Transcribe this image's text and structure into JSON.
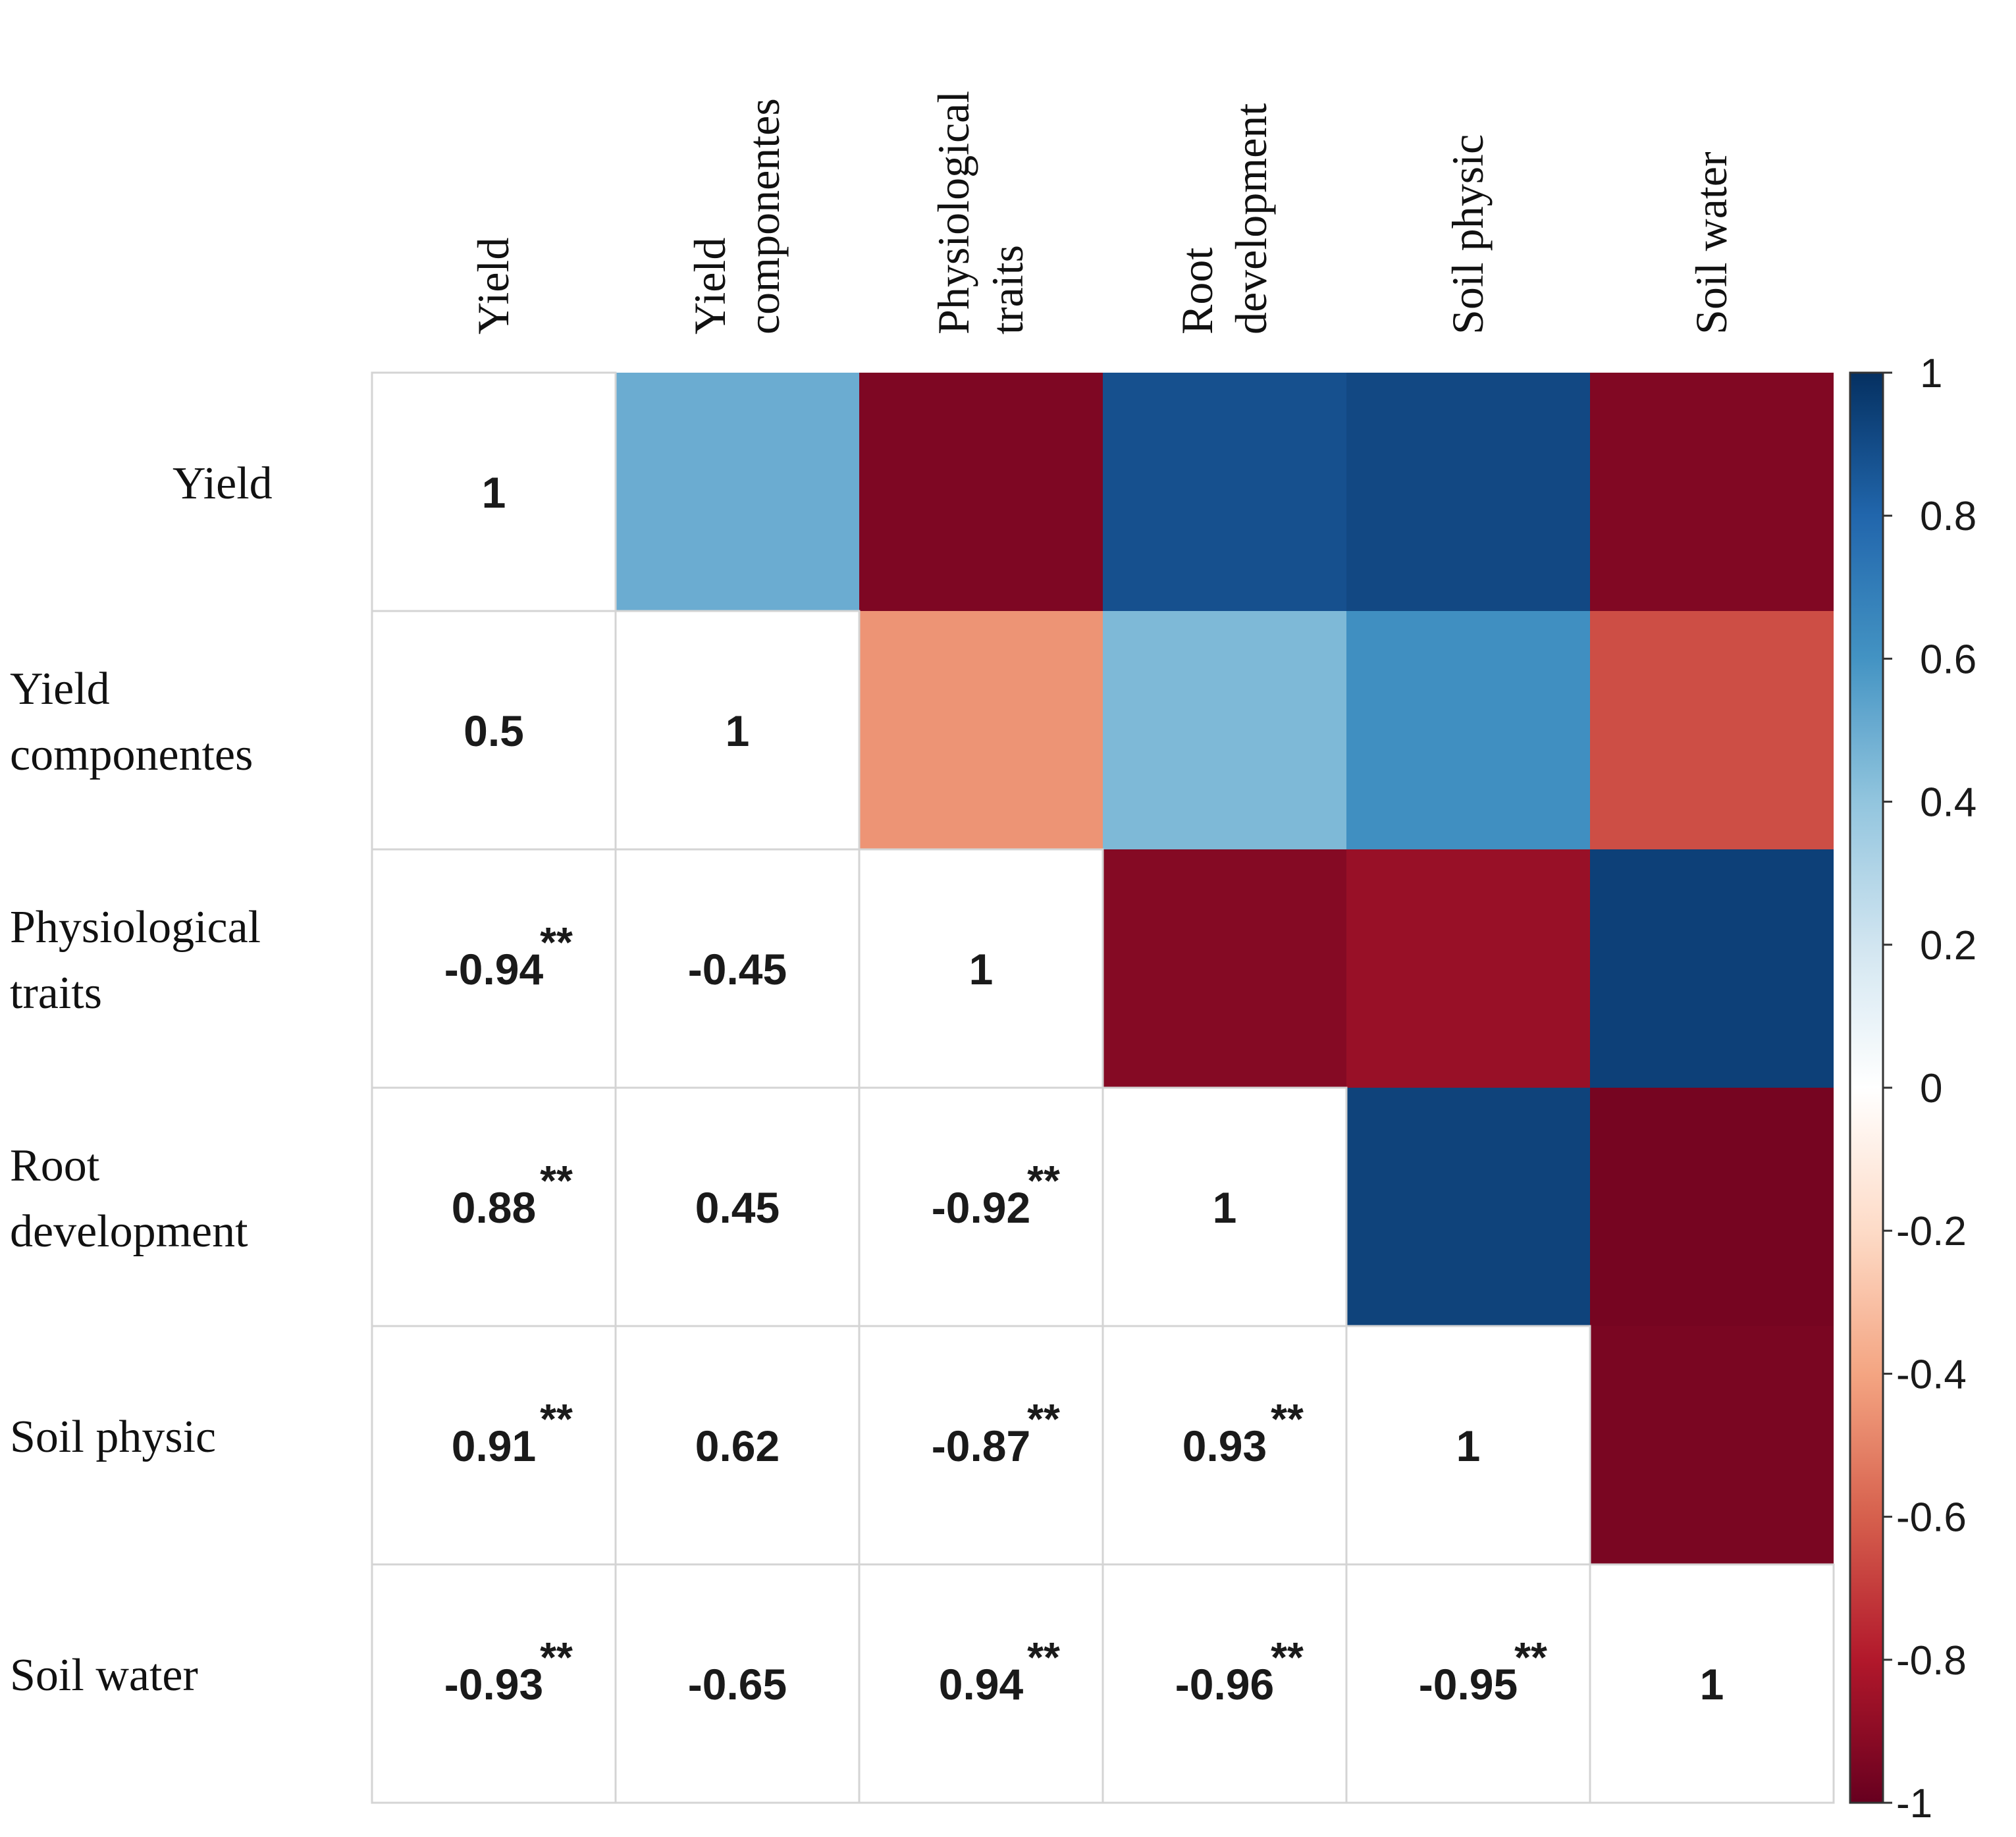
{
  "chart_data": {
    "type": "heatmap",
    "subtype": "correlation-matrix",
    "variables": [
      "Yield",
      "Yield componentes",
      "Physiological traits",
      "Root development",
      "Soil physic",
      "Soil water"
    ],
    "row_labels": [
      [
        "Yield"
      ],
      [
        "Yield",
        "componentes"
      ],
      [
        "Physiological",
        "traits"
      ],
      [
        "Root",
        "development"
      ],
      [
        "Soil physic"
      ],
      [
        "Soil water"
      ]
    ],
    "col_labels": [
      [
        "Yield"
      ],
      [
        "Yield",
        "componentes"
      ],
      [
        "Physiological",
        "traits"
      ],
      [
        "Root",
        "development"
      ],
      [
        "Soil physic"
      ],
      [
        "Soil water"
      ]
    ],
    "matrix": [
      [
        1,
        0.5,
        -0.94,
        0.88,
        0.91,
        -0.93
      ],
      [
        0.5,
        1,
        -0.45,
        0.45,
        0.62,
        -0.65
      ],
      [
        -0.94,
        -0.45,
        1,
        -0.92,
        -0.87,
        0.94
      ],
      [
        0.88,
        0.45,
        -0.92,
        1,
        0.93,
        -0.96
      ],
      [
        0.91,
        0.62,
        -0.87,
        0.93,
        1,
        -0.95
      ],
      [
        -0.93,
        -0.65,
        0.94,
        -0.96,
        -0.95,
        1
      ]
    ],
    "lower_labels": [
      [
        "1",
        "",
        "",
        "",
        "",
        ""
      ],
      [
        "0.5",
        "1",
        "",
        "",
        "",
        ""
      ],
      [
        "-0.94",
        "-0.45",
        "1",
        "",
        "",
        ""
      ],
      [
        "0.88",
        "0.45",
        "-0.92",
        "1",
        "",
        ""
      ],
      [
        "0.91",
        "0.62",
        "-0.87",
        "0.93",
        "1",
        ""
      ],
      [
        "-0.93",
        "-0.65",
        "0.94",
        "-0.96",
        "-0.95",
        "1"
      ]
    ],
    "significance": [
      [
        "",
        "",
        "",
        "",
        "",
        ""
      ],
      [
        "",
        "",
        "",
        "",
        "",
        ""
      ],
      [
        "**",
        "",
        "",
        "",
        "",
        ""
      ],
      [
        "**",
        "",
        "**",
        "",
        "",
        ""
      ],
      [
        "**",
        "",
        "**",
        "**",
        "",
        ""
      ],
      [
        "**",
        "",
        "**",
        "**",
        "**",
        ""
      ]
    ],
    "colorbar": {
      "range": [
        -1,
        1
      ],
      "ticks": [
        "1",
        "0.8",
        "0.6",
        "0.4",
        "0.2",
        "0",
        "-0.2",
        "-0.4",
        "-0.6",
        "-0.8",
        "-1"
      ],
      "tick_values": [
        1,
        0.8,
        0.6,
        0.4,
        0.2,
        0,
        -0.2,
        -0.4,
        -0.6,
        -0.8,
        -1
      ],
      "colors": {
        "neg1": "#67001f",
        "neg07": "#b2182b",
        "neg04": "#e58e72",
        "zero": "#ffffff",
        "pos04": "#8ec2de",
        "pos07": "#2166ac",
        "pos1": "#053061"
      }
    },
    "grid_color": "#d4d4d4"
  }
}
